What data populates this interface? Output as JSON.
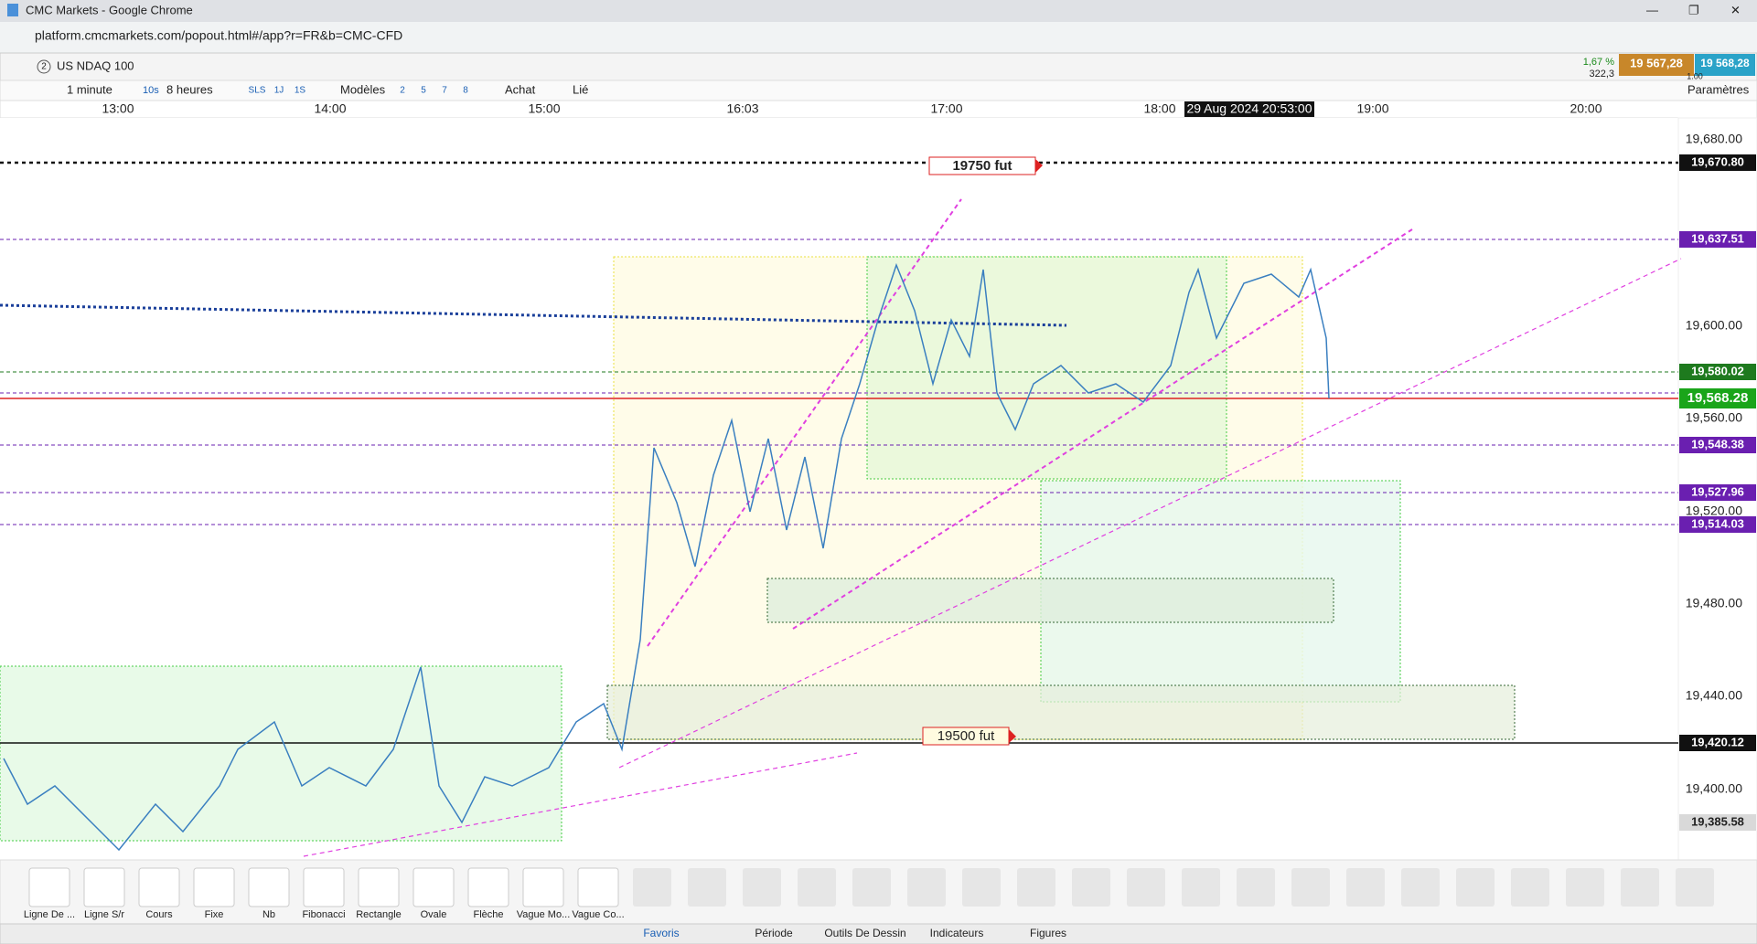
{
  "window": {
    "title": "CMC Markets - Google Chrome",
    "url": "platform.cmcmarkets.com/popout.html#/app?r=FR&b=CMC-CFD"
  },
  "instrument": {
    "badge": "2",
    "name": "US NDAQ 100",
    "change_pct": "1,67 %",
    "change_pts": "322,3",
    "sell": "19 567,28",
    "buy": "19 568,28",
    "spread": "1.00"
  },
  "toolbar": {
    "interval": "1 minute",
    "speed": "10s",
    "period": "8 heures",
    "buttons": [
      "SLS",
      "1J",
      "1S"
    ],
    "models": "Modèles",
    "numbers": [
      "2",
      "5",
      "7",
      "8"
    ],
    "buy": "Achat",
    "linked": "Lié",
    "settings": "Paramètres"
  },
  "time_axis": [
    "13:00",
    "14:00",
    "15:00",
    "16:03",
    "17:00",
    "18:00",
    "19:00",
    "20:00"
  ],
  "crosshair_time": "29 Aug 2024 20:53:00",
  "price_axis": [
    "19,680.00",
    "19,600.00",
    "19,560.00",
    "19,520.00",
    "19,480.00",
    "19,440.00",
    "19,400.00"
  ],
  "price_tags": [
    {
      "label": "19,670.80",
      "color": "#111111"
    },
    {
      "label": "19,637.51",
      "color": "#6a1fb0"
    },
    {
      "label": "19,580.02",
      "color": "#1e7a1e"
    },
    {
      "label": "19,568.28",
      "color": "#1aa51a"
    },
    {
      "label": "19,548.38",
      "color": "#6a1fb0"
    },
    {
      "label": "19,527.96",
      "color": "#6a1fb0"
    },
    {
      "label": "19,514.03",
      "color": "#6a1fb0"
    },
    {
      "label": "19,420.12",
      "color": "#111111"
    },
    {
      "label": "19,385.58",
      "color": "#d9d9d9"
    }
  ],
  "annotations": [
    "19750  fut",
    "19500 fut"
  ],
  "tools": [
    "Ligne De ...",
    "Ligne S/r",
    "Cours",
    "Fixe",
    "Nb",
    "Fibonacci",
    "Rectangle",
    "Ovale",
    "Flèche",
    "Vague Mo...",
    "Vague Co..."
  ],
  "tabs": [
    "Favoris",
    "Période",
    "Outils De Dessin",
    "Indicateurs",
    "Figures"
  ]
}
